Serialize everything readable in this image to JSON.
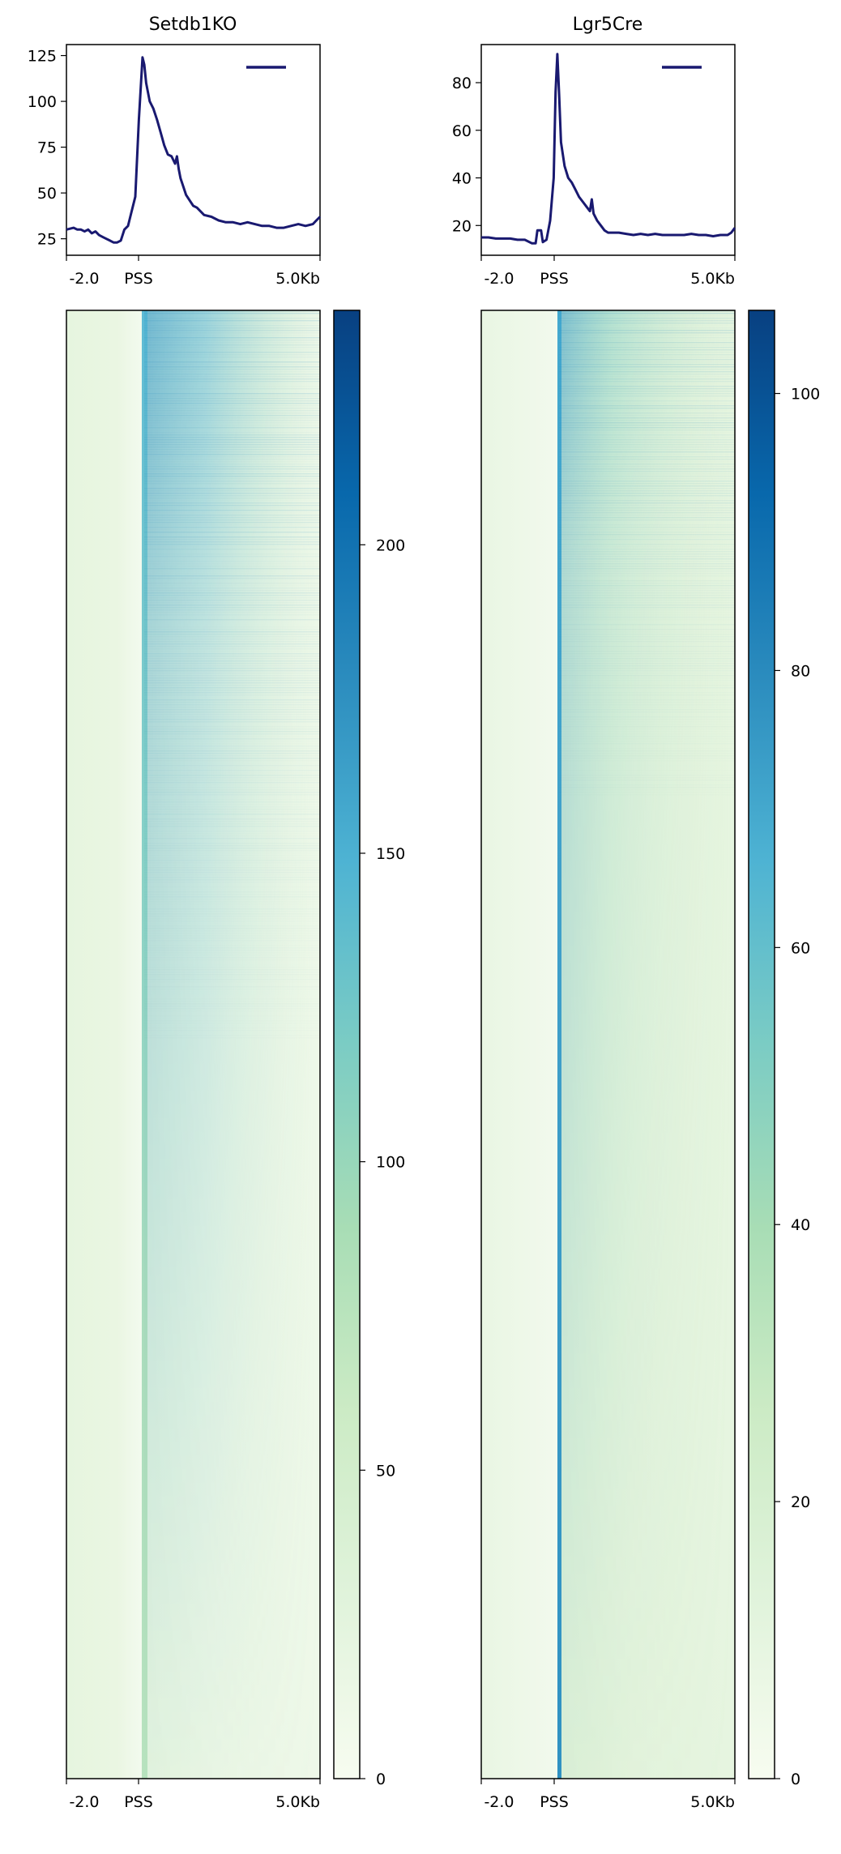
{
  "chart_data": [
    {
      "type": "line",
      "title": "Setdb1KO",
      "x_tick_labels": [
        "-2.0",
        "PSS",
        "5.0Kb"
      ],
      "x_range_kb": [
        -2.0,
        5.0
      ],
      "ylim": [
        16,
        131
      ],
      "y_ticks": [
        25,
        50,
        75,
        100,
        125
      ],
      "legend": {
        "placement": "top-right",
        "entries": [
          ""
        ]
      },
      "series": [
        {
          "color": "#191970",
          "x": [
            -2.0,
            -1.9,
            -1.8,
            -1.7,
            -1.6,
            -1.5,
            -1.4,
            -1.3,
            -1.2,
            -1.1,
            -1.0,
            -0.9,
            -0.8,
            -0.7,
            -0.6,
            -0.5,
            -0.4,
            -0.3,
            -0.2,
            -0.1,
            0.0,
            0.1,
            0.15,
            0.2,
            0.3,
            0.4,
            0.5,
            0.6,
            0.7,
            0.8,
            0.9,
            1.0,
            1.05,
            1.1,
            1.15,
            1.2,
            1.3,
            1.4,
            1.5,
            1.6,
            1.7,
            1.8,
            2.0,
            2.2,
            2.4,
            2.6,
            2.8,
            3.0,
            3.2,
            3.4,
            3.6,
            3.8,
            4.0,
            4.2,
            4.4,
            4.6,
            4.8,
            4.9,
            5.0
          ],
          "y": [
            30,
            30.5,
            31,
            30,
            30,
            29,
            30,
            28,
            29,
            27,
            26,
            25,
            24,
            23,
            23,
            24,
            30,
            32,
            40,
            48,
            90,
            124,
            120,
            110,
            100,
            96,
            90,
            83,
            76,
            71,
            70,
            66,
            70,
            63,
            58,
            55,
            49,
            46,
            43,
            42,
            40,
            38,
            37,
            35,
            34,
            34,
            33,
            34,
            33,
            32,
            32,
            31,
            31,
            32,
            33,
            32,
            33,
            35,
            37
          ]
        }
      ],
      "colorbar": {
        "ticks": [
          0,
          50,
          100,
          150,
          200
        ],
        "max": 238
      }
    },
    {
      "type": "line",
      "title": "Lgr5Cre",
      "x_tick_labels": [
        "-2.0",
        "PSS",
        "5.0Kb"
      ],
      "x_range_kb": [
        -2.0,
        5.0
      ],
      "ylim": [
        7.5,
        96
      ],
      "y_ticks": [
        20,
        40,
        60,
        80
      ],
      "legend": {
        "placement": "top-right",
        "entries": [
          ""
        ]
      },
      "series": [
        {
          "color": "#191970",
          "x": [
            -2.0,
            -1.8,
            -1.6,
            -1.4,
            -1.2,
            -1.0,
            -0.8,
            -0.6,
            -0.5,
            -0.45,
            -0.35,
            -0.3,
            -0.2,
            -0.1,
            0.0,
            0.05,
            0.1,
            0.15,
            0.2,
            0.3,
            0.4,
            0.5,
            0.6,
            0.7,
            0.8,
            0.9,
            1.0,
            1.05,
            1.1,
            1.2,
            1.3,
            1.4,
            1.5,
            1.6,
            1.8,
            2.0,
            2.2,
            2.4,
            2.6,
            2.8,
            3.0,
            3.2,
            3.4,
            3.6,
            3.8,
            4.0,
            4.2,
            4.4,
            4.6,
            4.8,
            4.9,
            5.0
          ],
          "y": [
            15,
            15,
            14.5,
            14.5,
            14.5,
            14,
            14,
            12.5,
            12.5,
            18,
            18,
            13,
            14,
            22,
            40,
            76,
            92,
            75,
            55,
            45,
            40,
            38,
            35,
            32,
            30,
            28,
            26,
            31,
            25,
            22,
            20,
            18,
            17,
            17,
            17,
            16.5,
            16,
            16.5,
            16,
            16.5,
            16,
            16,
            16,
            16,
            16.5,
            16,
            16,
            15.5,
            16,
            16,
            17,
            19
          ]
        }
      ],
      "colorbar": {
        "ticks": [
          0,
          20,
          40,
          60,
          80,
          100
        ],
        "max": 106
      }
    }
  ],
  "heatmap_tick_labels": [
    "-2.0",
    "PSS",
    "5.0Kb"
  ],
  "colormap": [
    "#f7fcf0",
    "#e0f3db",
    "#ccebc5",
    "#a8ddb5",
    "#7bccc4",
    "#4eb3d3",
    "#2b8cbe",
    "#0868ac",
    "#084081"
  ]
}
